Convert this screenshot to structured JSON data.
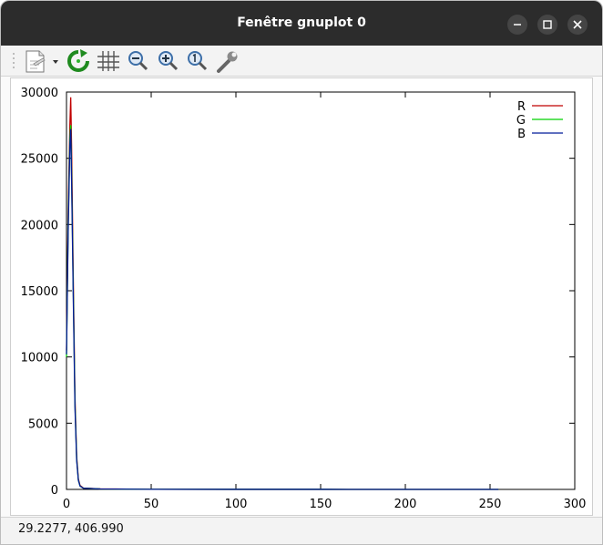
{
  "window": {
    "title": "Fenêtre gnuplot 0"
  },
  "toolbar": {
    "items": [
      {
        "icon": "export-icon"
      },
      {
        "icon": "refresh-icon"
      },
      {
        "icon": "grid-icon"
      },
      {
        "icon": "zoom-out-icon"
      },
      {
        "icon": "zoom-in-icon"
      },
      {
        "icon": "zoom-reset-icon"
      },
      {
        "icon": "settings-wrench-icon"
      }
    ]
  },
  "status": {
    "coordinates": "29.2277,  406.990"
  },
  "chart_data": {
    "type": "line",
    "xlim": [
      0,
      300
    ],
    "ylim": [
      0,
      30000
    ],
    "x_ticks": [
      "0",
      "50",
      "100",
      "150",
      "200",
      "250",
      "300"
    ],
    "y_ticks": [
      "0",
      "5000",
      "10000",
      "15000",
      "20000",
      "25000",
      "30000"
    ],
    "legend_position": "top-right",
    "grid": false,
    "series": [
      {
        "name": "R",
        "color": "#c00000",
        "points": [
          [
            0,
            10500
          ],
          [
            1,
            21000
          ],
          [
            2,
            27500
          ],
          [
            2.5,
            29600
          ],
          [
            3,
            26000
          ],
          [
            4,
            16000
          ],
          [
            5,
            7000
          ],
          [
            6,
            2500
          ],
          [
            7,
            800
          ],
          [
            8,
            300
          ],
          [
            10,
            100
          ],
          [
            20,
            40
          ],
          [
            50,
            10
          ],
          [
            100,
            5
          ],
          [
            150,
            3
          ],
          [
            200,
            2
          ],
          [
            255,
            1
          ]
        ]
      },
      {
        "name": "G",
        "color": "#00d000",
        "points": [
          [
            0,
            10000
          ],
          [
            1,
            20000
          ],
          [
            2,
            26500
          ],
          [
            2.5,
            27500
          ],
          [
            3,
            24000
          ],
          [
            4,
            15000
          ],
          [
            5,
            6500
          ],
          [
            6,
            2300
          ],
          [
            7,
            700
          ],
          [
            8,
            250
          ],
          [
            10,
            90
          ],
          [
            20,
            35
          ],
          [
            50,
            10
          ],
          [
            100,
            5
          ],
          [
            150,
            3
          ],
          [
            200,
            2
          ],
          [
            255,
            1
          ]
        ]
      },
      {
        "name": "B",
        "color": "#001a9a",
        "points": [
          [
            0,
            10200
          ],
          [
            1,
            19500
          ],
          [
            2,
            26000
          ],
          [
            2.5,
            27200
          ],
          [
            3,
            23500
          ],
          [
            4,
            14500
          ],
          [
            5,
            6200
          ],
          [
            6,
            2200
          ],
          [
            7,
            700
          ],
          [
            8,
            250
          ],
          [
            10,
            90
          ],
          [
            20,
            35
          ],
          [
            50,
            10
          ],
          [
            100,
            5
          ],
          [
            150,
            3
          ],
          [
            200,
            2
          ],
          [
            255,
            1
          ]
        ]
      }
    ]
  }
}
